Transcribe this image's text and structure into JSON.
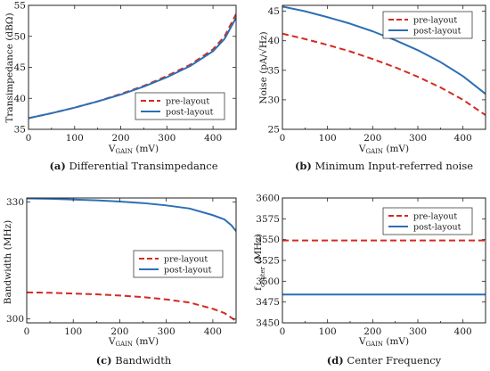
{
  "colors": {
    "pre": "#d42a20",
    "post": "#2d6fb6"
  },
  "legend": {
    "pre": "pre-layout",
    "post": "post-layout"
  },
  "xlabel": {
    "main": "V",
    "sub": "GAIN",
    "unit": " (mV)"
  },
  "chart_data": [
    {
      "id": "a",
      "type": "line",
      "caption": {
        "letter": "(a)",
        "text": " Differential Transimpedance"
      },
      "ylabel": "Transimpedance (dBΩ)",
      "ylabel_sub": "",
      "ylabel_rest": "",
      "xlim": [
        0,
        450
      ],
      "ylim": [
        35,
        55
      ],
      "xticks": [
        0,
        100,
        200,
        300,
        400
      ],
      "yticks": [
        35,
        40,
        45,
        50,
        55
      ],
      "legend_position": "bottom-right",
      "series": [
        {
          "name": "pre-layout",
          "style": "dashed",
          "x": [
            0,
            50,
            100,
            150,
            200,
            250,
            300,
            350,
            400,
            425,
            450
          ],
          "y": [
            36.8,
            37.6,
            38.5,
            39.5,
            40.7,
            42.0,
            43.6,
            45.4,
            47.9,
            50.0,
            53.6
          ]
        },
        {
          "name": "post-layout",
          "style": "solid",
          "x": [
            0,
            50,
            100,
            150,
            200,
            250,
            300,
            350,
            400,
            425,
            450
          ],
          "y": [
            36.8,
            37.6,
            38.5,
            39.5,
            40.6,
            41.9,
            43.4,
            45.2,
            47.6,
            49.6,
            53.0
          ]
        }
      ]
    },
    {
      "id": "b",
      "type": "line",
      "caption": {
        "letter": "(b)",
        "text": " Minimum Input-referred noise"
      },
      "ylabel": "Noise (pA/√Hz)",
      "ylabel_sub": "",
      "ylabel_rest": "",
      "xlim": [
        0,
        450
      ],
      "ylim": [
        25,
        46
      ],
      "xticks": [
        0,
        100,
        200,
        300,
        400
      ],
      "yticks": [
        25,
        30,
        35,
        40,
        45
      ],
      "legend_position": "top-right",
      "series": [
        {
          "name": "pre-layout",
          "style": "dashed",
          "x": [
            0,
            50,
            100,
            150,
            200,
            250,
            300,
            350,
            400,
            450
          ],
          "y": [
            41.2,
            40.3,
            39.3,
            38.2,
            36.9,
            35.5,
            33.9,
            32.1,
            30.0,
            27.4
          ]
        },
        {
          "name": "post-layout",
          "style": "solid",
          "x": [
            0,
            50,
            100,
            150,
            200,
            250,
            300,
            350,
            400,
            450
          ],
          "y": [
            45.8,
            45.0,
            44.0,
            42.9,
            41.6,
            40.1,
            38.4,
            36.4,
            34.0,
            31.0
          ]
        }
      ]
    },
    {
      "id": "c",
      "type": "line",
      "caption": {
        "letter": "(c)",
        "text": " Bandwidth"
      },
      "ylabel": "Bandwidth (MHz)",
      "ylabel_sub": "",
      "ylabel_rest": "",
      "xlim": [
        0,
        450
      ],
      "ylim": [
        299,
        331
      ],
      "xticks": [
        0,
        100,
        200,
        300,
        400
      ],
      "yticks": [
        300,
        330
      ],
      "legend_position": "center-right",
      "series": [
        {
          "name": "pre-layout",
          "style": "dashed",
          "x": [
            0,
            50,
            100,
            150,
            200,
            250,
            300,
            350,
            400,
            425,
            440,
            450
          ],
          "y": [
            306.8,
            306.7,
            306.5,
            306.3,
            306.0,
            305.6,
            305.0,
            304.2,
            302.6,
            301.5,
            300.3,
            299.5
          ]
        },
        {
          "name": "post-layout",
          "style": "solid",
          "x": [
            0,
            50,
            100,
            150,
            200,
            250,
            300,
            350,
            400,
            425,
            440,
            450
          ],
          "y": [
            330.9,
            330.8,
            330.6,
            330.4,
            330.1,
            329.7,
            329.1,
            328.3,
            326.6,
            325.5,
            324.0,
            322.5
          ]
        }
      ]
    },
    {
      "id": "d",
      "type": "line",
      "caption": {
        "letter": "(d)",
        "text": " Center Frequency"
      },
      "ylabel": "f",
      "ylabel_sub": "center",
      "ylabel_rest": " (MHz)",
      "xlim": [
        0,
        450
      ],
      "ylim": [
        3450,
        3600
      ],
      "xticks": [
        0,
        100,
        200,
        300,
        400
      ],
      "yticks": [
        3450,
        3475,
        3500,
        3525,
        3550,
        3575,
        3600
      ],
      "legend_position": "top-right",
      "series": [
        {
          "name": "pre-layout",
          "style": "dashed",
          "x": [
            0,
            450
          ],
          "y": [
            3549,
            3549
          ]
        },
        {
          "name": "post-layout",
          "style": "solid",
          "x": [
            0,
            450
          ],
          "y": [
            3484,
            3484
          ]
        }
      ]
    }
  ]
}
